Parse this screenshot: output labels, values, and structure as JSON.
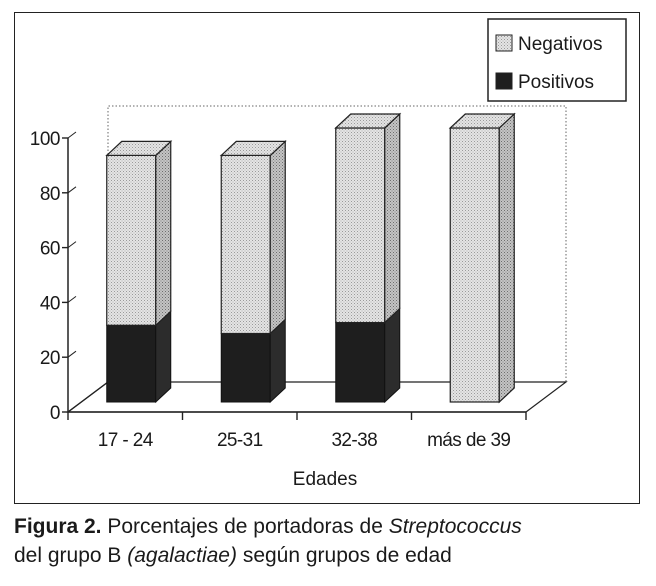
{
  "chart_data": {
    "type": "bar",
    "stacked": true,
    "three_d": true,
    "categories": [
      "17 - 24",
      "25-31",
      "32-38",
      "más de 39"
    ],
    "series": [
      {
        "name": "Positivos",
        "values": [
          28,
          25,
          29,
          0
        ],
        "color": "#1e1e1e"
      },
      {
        "name": "Negativos",
        "values": [
          62,
          65,
          71,
          100
        ],
        "color": "#d4d4d4"
      }
    ],
    "ytick_labels": [
      "0",
      "20",
      "40",
      "60",
      "80",
      "100"
    ],
    "ylim": [
      0,
      100
    ],
    "xlabel": "Edades",
    "ylabel": "",
    "legend": {
      "position": "top-right",
      "order": [
        "Negativos",
        "Positivos"
      ]
    }
  },
  "caption": {
    "label": "Figura 2.",
    "text_1": " Porcentajes de portadoras de ",
    "species": "Streptococcus",
    "text_2": "del grupo B ",
    "subspecies": "(agalactiae)",
    "text_3": " según grupos de edad"
  }
}
